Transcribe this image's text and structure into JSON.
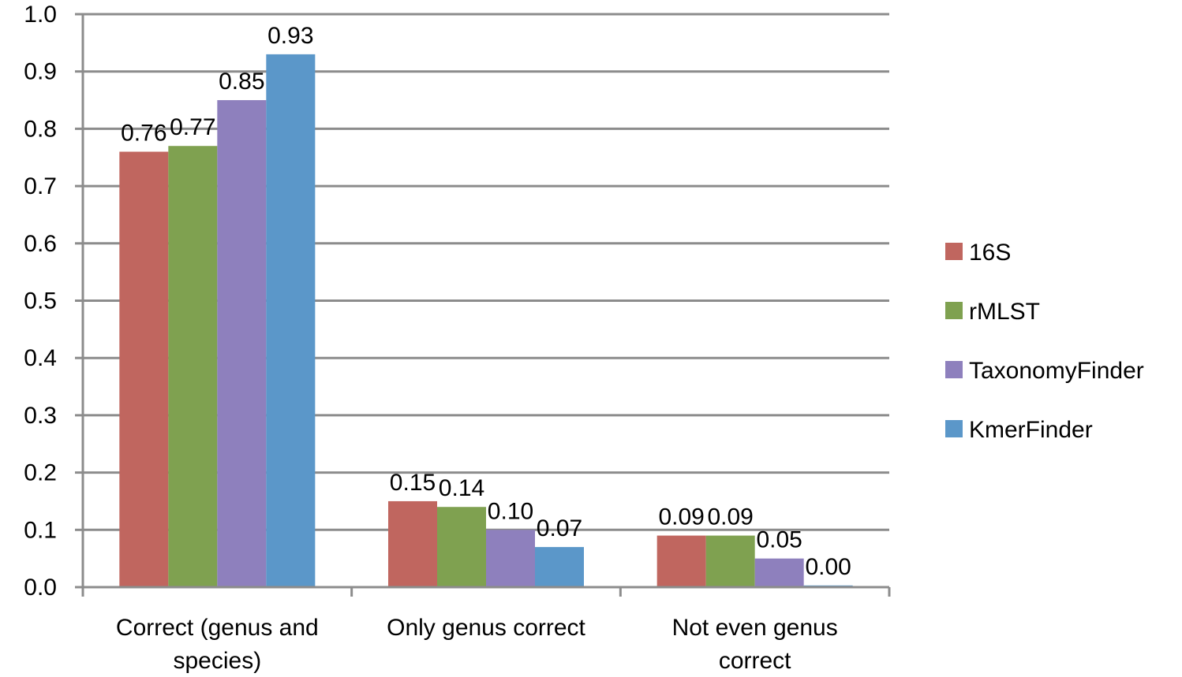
{
  "chart_data": {
    "type": "bar",
    "categories": [
      "Correct (genus and species)",
      "Only genus correct",
      "Not even genus correct"
    ],
    "category_lines": [
      [
        "Correct (genus and",
        "species)"
      ],
      [
        "Only genus correct"
      ],
      [
        "Not even genus",
        "correct"
      ]
    ],
    "series": [
      {
        "name": "16S",
        "color": "#c0665f",
        "values": [
          0.76,
          0.15,
          0.09
        ],
        "labels": [
          "0.76",
          "0.15",
          "0.09"
        ]
      },
      {
        "name": "rMLST",
        "color": "#7fa150",
        "values": [
          0.77,
          0.14,
          0.09
        ],
        "labels": [
          "0.77",
          "0.14",
          "0.09"
        ]
      },
      {
        "name": "TaxonomyFinder",
        "color": "#8e80bd",
        "values": [
          0.85,
          0.1,
          0.05
        ],
        "labels": [
          "0.85",
          "0.10",
          "0.05"
        ]
      },
      {
        "name": "KmerFinder",
        "color": "#5b97c9",
        "values": [
          0.93,
          0.07,
          0.003
        ],
        "labels": [
          "0.93",
          "0.07",
          "0.00"
        ]
      }
    ],
    "ylim": [
      0,
      1.0
    ],
    "yticks": [
      "0.0",
      "0.1",
      "0.2",
      "0.3",
      "0.4",
      "0.5",
      "0.6",
      "0.7",
      "0.8",
      "0.9",
      "1.0"
    ],
    "title": "",
    "xlabel": "",
    "ylabel": "",
    "grid": true,
    "legend_position": "right"
  }
}
